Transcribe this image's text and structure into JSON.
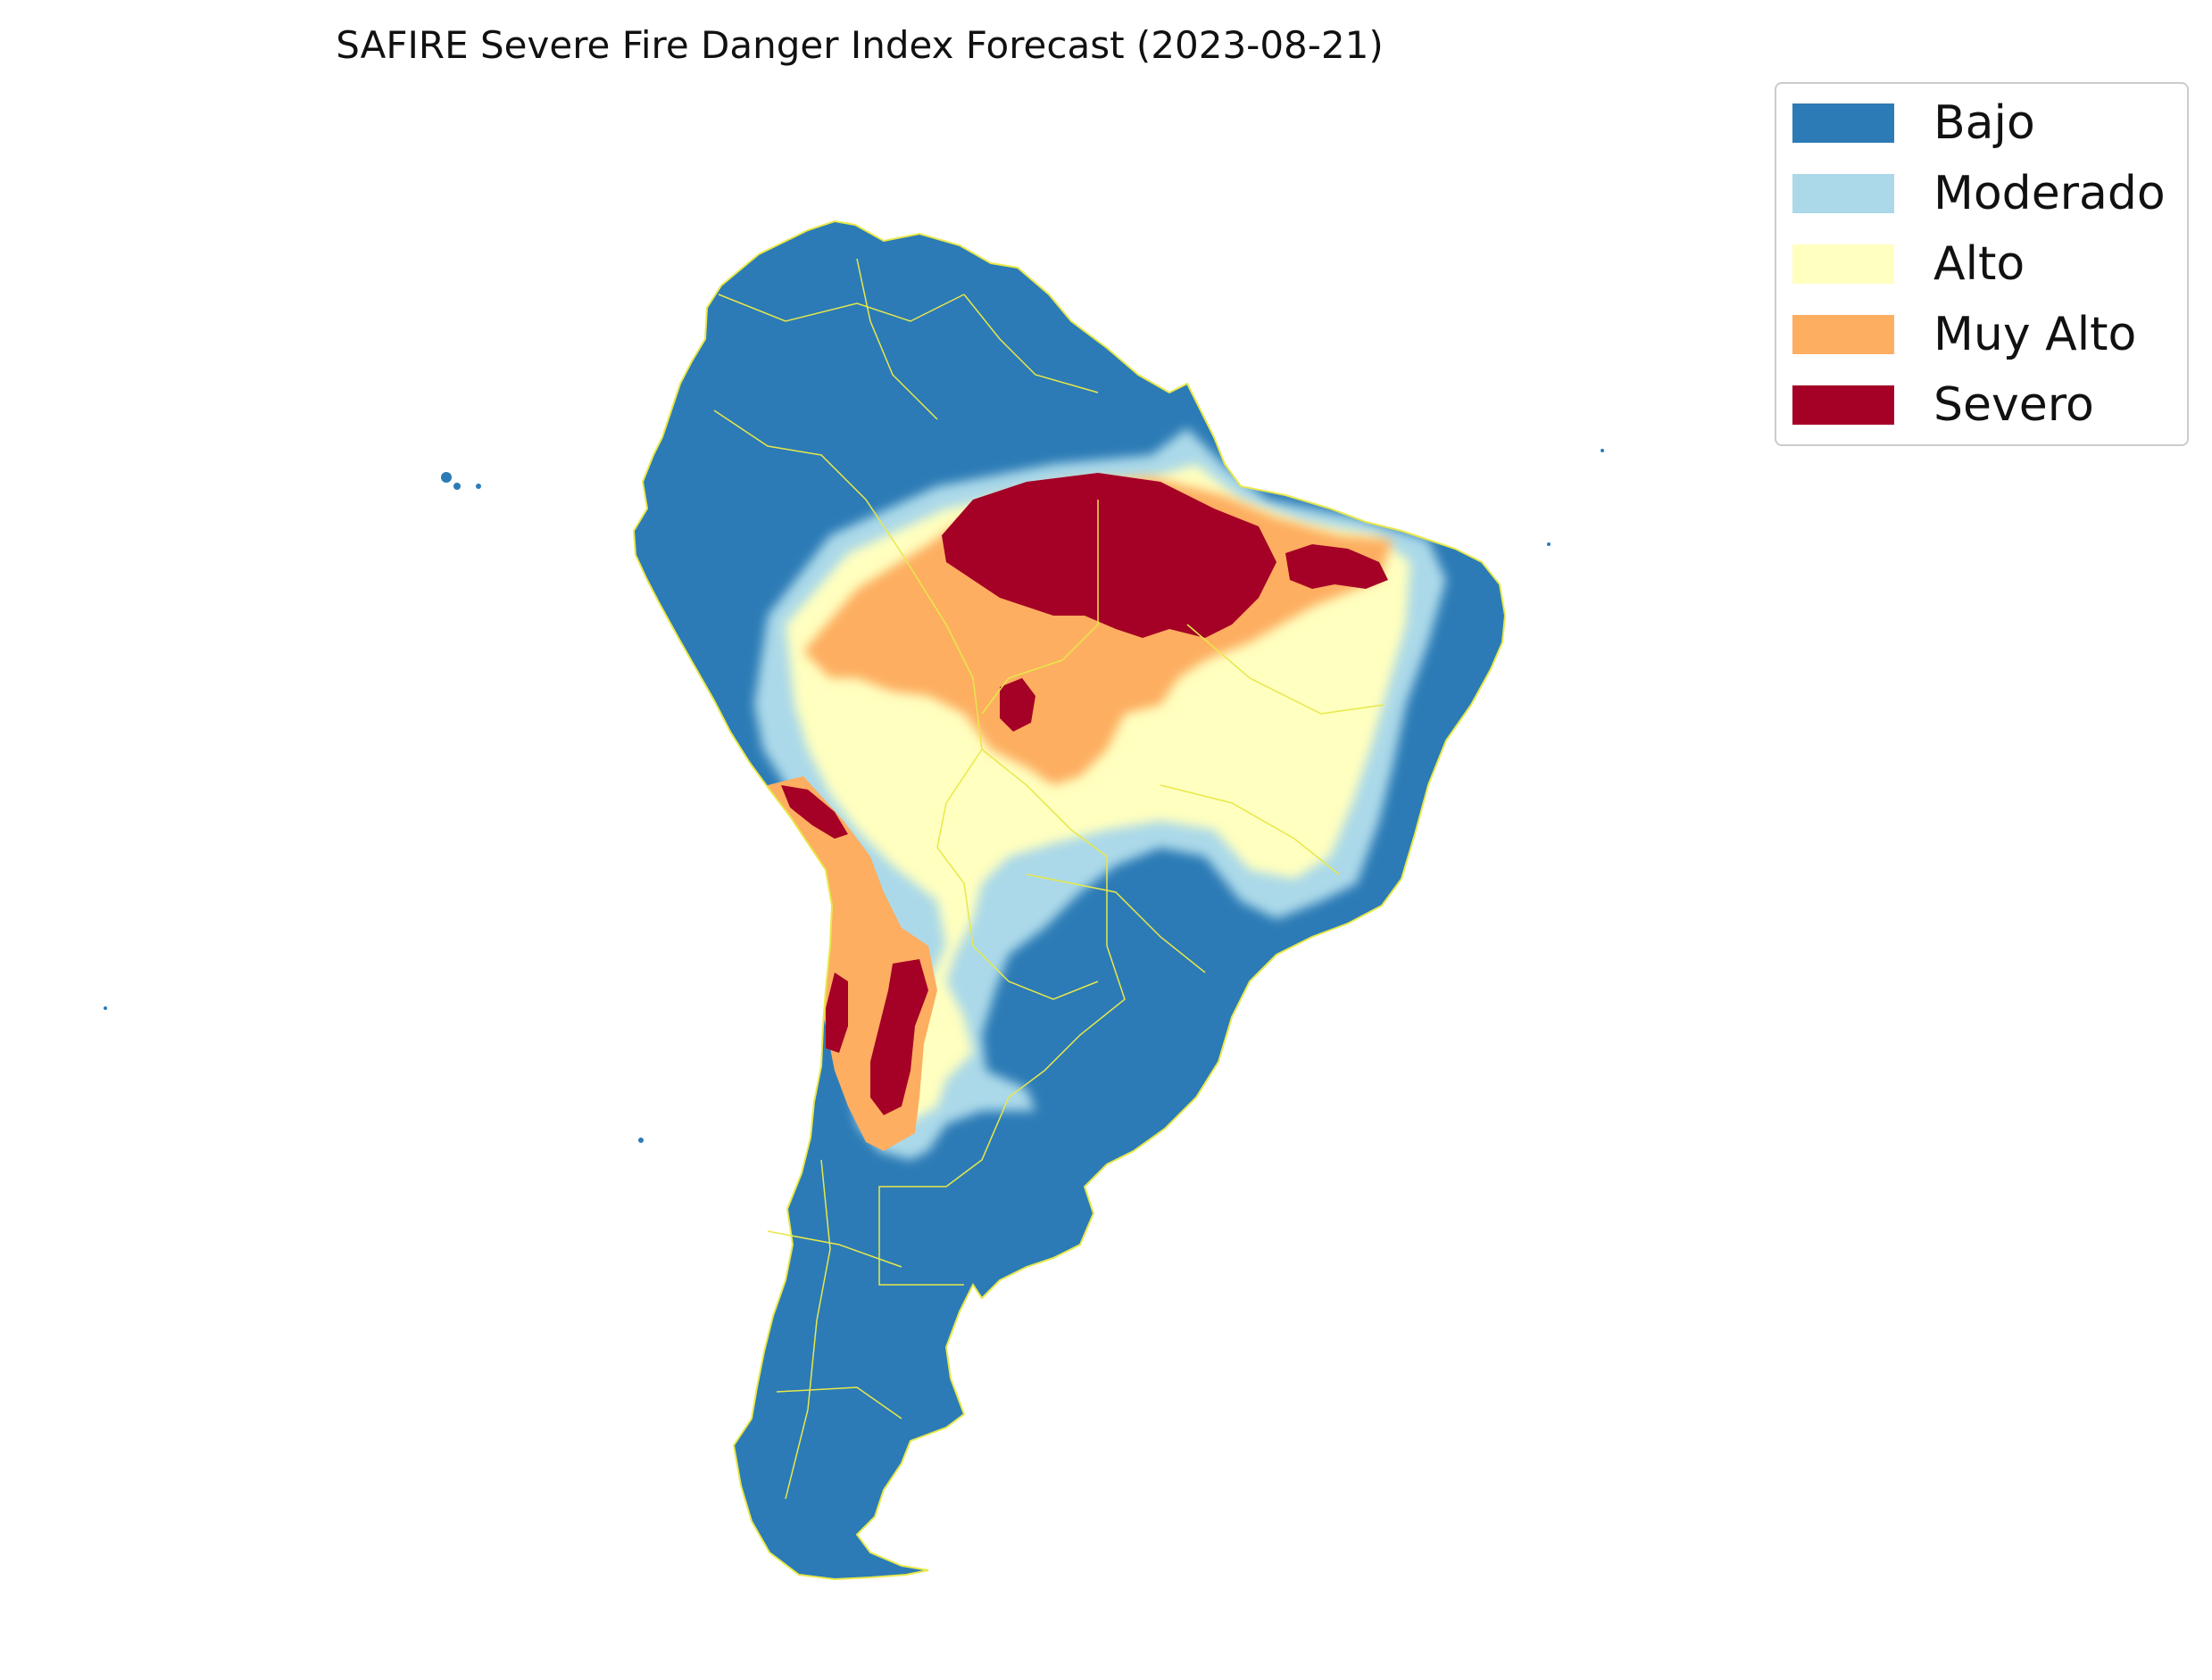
{
  "title": "SAFIRE Severe Fire Danger Index Forecast (2023-08-21)",
  "legend": {
    "items": [
      {
        "label": "Bajo",
        "color": "#2c7bb6"
      },
      {
        "label": "Moderado",
        "color": "#abd9e9"
      },
      {
        "label": "Alto",
        "color": "#ffffbf"
      },
      {
        "label": "Muy Alto",
        "color": "#fdae61"
      },
      {
        "label": "Severo",
        "color": "#a50026"
      }
    ]
  },
  "map": {
    "region": "South America",
    "border_color": "#e8e84a"
  }
}
